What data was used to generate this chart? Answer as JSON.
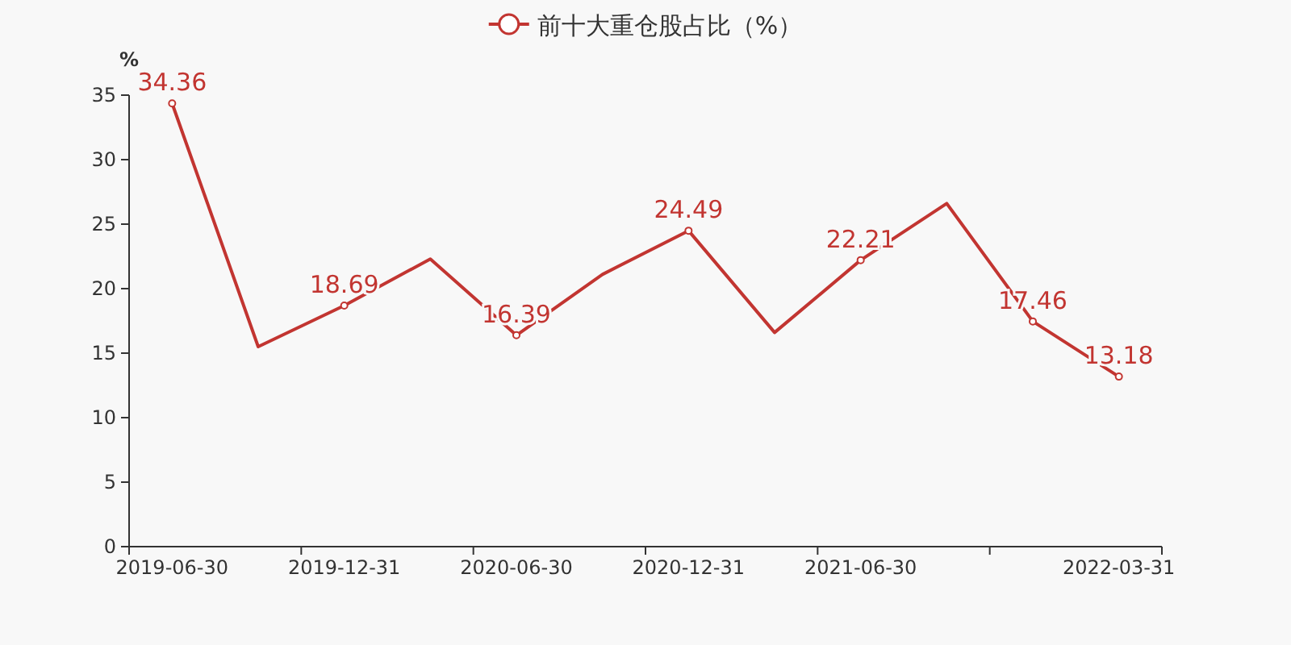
{
  "chart_data": {
    "type": "line",
    "ylabel": "%",
    "categories": [
      "2019-06-30",
      null,
      "2019-12-31",
      null,
      "2020-06-30",
      null,
      "2020-12-31",
      null,
      "2021-06-30",
      null,
      null,
      "2022-03-31"
    ],
    "series": [
      {
        "name": "前十大重仓股占比（%）",
        "color": "#c23531",
        "values": [
          34.36,
          15.5,
          18.69,
          22.3,
          16.39,
          21.1,
          24.49,
          16.6,
          22.21,
          26.6,
          17.46,
          13.18
        ],
        "value_labels": [
          "34.36",
          null,
          "18.69",
          null,
          "16.39",
          null,
          "24.49",
          null,
          "22.21",
          null,
          "17.46",
          "13.18"
        ]
      }
    ],
    "ylim": [
      0,
      35
    ],
    "yticks": [
      0,
      5,
      10,
      15,
      20,
      25,
      30,
      35
    ],
    "grid": false,
    "legend": "top",
    "marker": "circle",
    "line_style": "solid"
  }
}
